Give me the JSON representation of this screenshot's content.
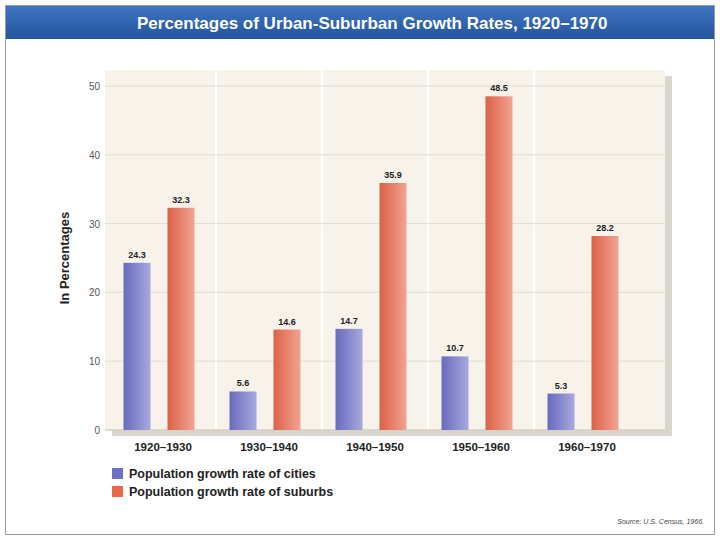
{
  "chart_data": {
    "type": "bar",
    "title": "Percentages of Urban-Suburban Growth Rates, 1920–1970",
    "y_label": "In Percentages",
    "source": "Source: U.S. Census, 1966.",
    "categories": [
      "1920–1930",
      "1930–1940",
      "1940–1950",
      "1950–1960",
      "1960–1970"
    ],
    "series": [
      {
        "name": "Population growth rate of cities",
        "color": "#6d70c8",
        "values": [
          24.3,
          5.6,
          14.7,
          10.7,
          5.3
        ]
      },
      {
        "name": "Population growth rate of suburbs",
        "color": "#e8664a",
        "values": [
          32.3,
          14.6,
          35.9,
          48.5,
          28.2
        ]
      }
    ],
    "ylim": [
      0,
      50
    ],
    "yticks": [
      0,
      10,
      20,
      30,
      40,
      50
    ],
    "grid": true,
    "data_labels": true,
    "legend": "bottom-left"
  }
}
